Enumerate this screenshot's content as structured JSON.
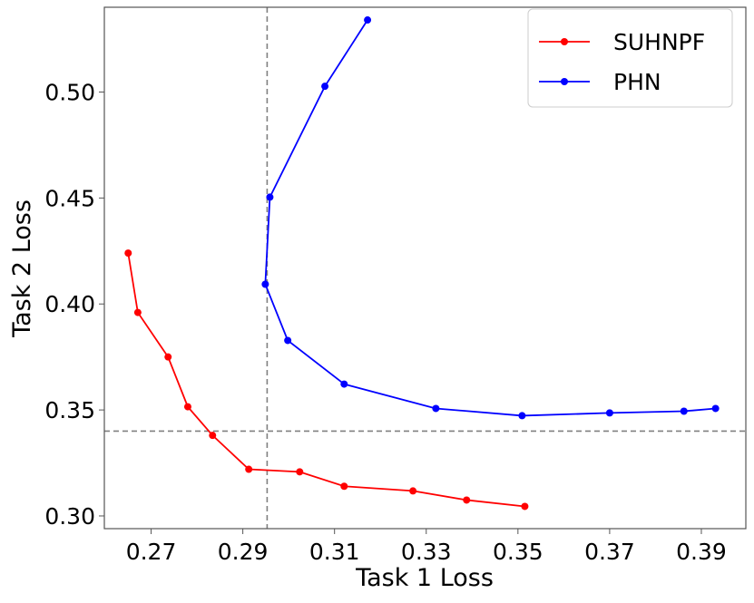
{
  "chart_data": {
    "type": "line",
    "xlabel": "Task 1 Loss",
    "ylabel": "Task 2 Loss",
    "xlim": [
      0.2598,
      0.3997
    ],
    "ylim": [
      0.294,
      0.54
    ],
    "xticks": [
      0.27,
      0.29,
      0.31,
      0.33,
      0.35,
      0.37,
      0.39
    ],
    "xtick_labels": [
      "0.27",
      "0.29",
      "0.31",
      "0.33",
      "0.35",
      "0.37",
      "0.39"
    ],
    "yticks": [
      0.3,
      0.35,
      0.4,
      0.45,
      0.5
    ],
    "ytick_labels": [
      "0.30",
      "0.35",
      "0.40",
      "0.45",
      "0.50"
    ],
    "grid": false,
    "legend": "top-right",
    "reference_lines": {
      "vertical_x": 0.2953,
      "horizontal_y": 0.34,
      "color": "#808080",
      "style": "dashed"
    },
    "series": [
      {
        "name": "SUHNPF",
        "color": "#ff0000",
        "x": [
          0.265,
          0.2671,
          0.2737,
          0.278,
          0.2834,
          0.2913,
          0.3024,
          0.3121,
          0.3271,
          0.3388,
          0.3515
        ],
        "y": [
          0.424,
          0.396,
          0.375,
          0.3515,
          0.338,
          0.322,
          0.3208,
          0.314,
          0.3118,
          0.3075,
          0.3045
        ]
      },
      {
        "name": "PHN",
        "color": "#0000ff",
        "x": [
          0.3172,
          0.3079,
          0.2959,
          0.2949,
          0.2998,
          0.3121,
          0.3321,
          0.3509,
          0.37,
          0.3862,
          0.3931
        ],
        "y": [
          0.534,
          0.5027,
          0.4504,
          0.4093,
          0.3828,
          0.3622,
          0.3507,
          0.3473,
          0.3486,
          0.3494,
          0.3507
        ]
      }
    ]
  }
}
